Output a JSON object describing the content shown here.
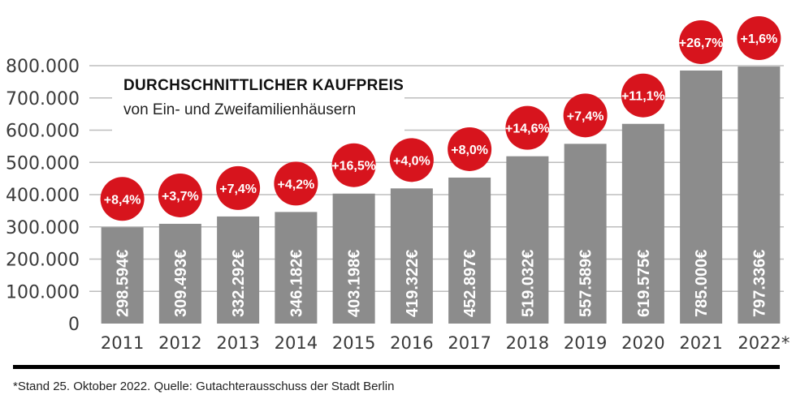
{
  "chart_data": {
    "type": "bar",
    "title": "DURCHSCHNITTLICHER KAUFPREIS",
    "subtitle": "von Ein- und Zweifamilienhäusern",
    "categories": [
      "2011",
      "2012",
      "2013",
      "2014",
      "2015",
      "2016",
      "2017",
      "2018",
      "2019",
      "2020",
      "2021",
      "2022*"
    ],
    "values": [
      298594,
      309493,
      332292,
      346182,
      403198,
      419322,
      452897,
      519032,
      557589,
      619575,
      785000,
      797336
    ],
    "value_labels": [
      "298.594€",
      "309.493€",
      "332.292€",
      "346.182€",
      "403.198€",
      "419.322€",
      "452.897€",
      "519.032€",
      "557.589€",
      "619.575€",
      "785.000€",
      "797.336€"
    ],
    "change_labels": [
      "+8,4%",
      "+3,7%",
      "+7,4%",
      "+4,2%",
      "+16,5%",
      "+4,0%",
      "+8,0%",
      "+14,6%",
      "+7,4%",
      "+11,1%",
      "+26,7%",
      "+1,6%"
    ],
    "y_ticks": [
      0,
      100000,
      200000,
      300000,
      400000,
      500000,
      600000,
      700000,
      800000
    ],
    "y_tick_labels": [
      "0",
      "100.000",
      "200.000",
      "300.000",
      "400.000",
      "500.000",
      "600.000",
      "700.000",
      "800.000"
    ],
    "ylim": [
      0,
      800000
    ],
    "grid": true,
    "colors": {
      "bar": "#8c8c8c",
      "badge": "#d7141d",
      "grid": "#bdbdbd",
      "baseline": "#000000"
    }
  },
  "footnote": "*Stand 25. Oktober 2022. Quelle: Gutachterausschuss der Stadt Berlin"
}
